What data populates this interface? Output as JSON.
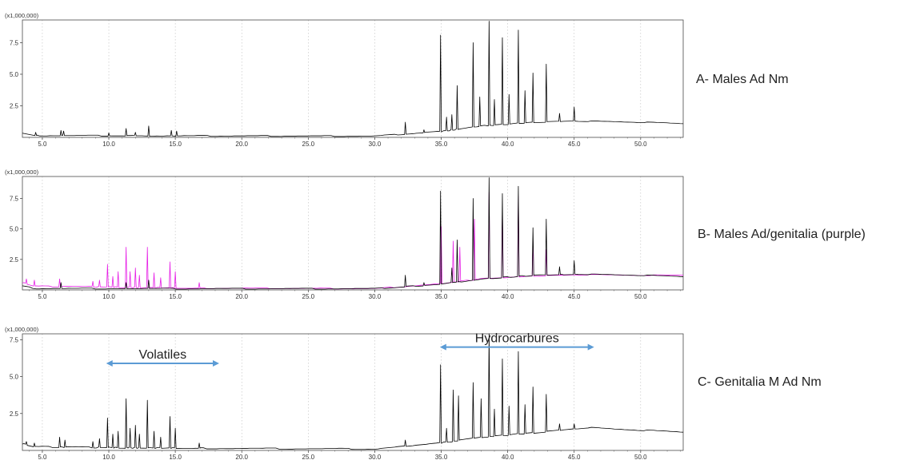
{
  "chart_data": [
    {
      "type": "line",
      "scale_label": "(x1,000,000)",
      "sample_label": "A- Males Ad Nm",
      "xlim": [
        3.5,
        53.2
      ],
      "ylim": [
        0,
        9.3
      ],
      "xticks": [
        5.0,
        10.0,
        15.0,
        20.0,
        25.0,
        30.0,
        35.0,
        40.0,
        45.0,
        50.0
      ],
      "xtick_labels": [
        "5.0",
        "10.0",
        "15.0",
        "20.0",
        "25.0",
        "30.0",
        "35.0",
        "40.0",
        "45.0",
        "50.0"
      ],
      "yticks": [
        2.5,
        5.0,
        7.5
      ],
      "ytick_labels": [
        "2.5",
        "5.0",
        "7.5"
      ],
      "grid": true,
      "series": [
        {
          "color": "#000000",
          "baseline": [
            [
              3.5,
              0.35
            ],
            [
              4.5,
              0.15
            ],
            [
              15.0,
              0.12
            ],
            [
              30.0,
              0.1
            ],
            [
              34.9,
              0.45
            ],
            [
              38.0,
              0.9
            ],
            [
              42.0,
              1.2
            ],
            [
              45.0,
              1.3
            ],
            [
              50.0,
              1.2
            ],
            [
              53.2,
              1.1
            ]
          ],
          "peaks": [
            [
              4.5,
              0.4
            ],
            [
              6.4,
              0.55
            ],
            [
              6.6,
              0.5
            ],
            [
              10.0,
              0.35
            ],
            [
              11.3,
              0.7
            ],
            [
              12.0,
              0.4
            ],
            [
              13.0,
              0.9
            ],
            [
              14.7,
              0.55
            ],
            [
              15.1,
              0.5
            ],
            [
              32.3,
              1.2
            ],
            [
              33.7,
              0.6
            ],
            [
              34.95,
              8.1
            ],
            [
              35.4,
              1.6
            ],
            [
              35.8,
              1.8
            ],
            [
              36.2,
              4.1
            ],
            [
              37.4,
              7.5
            ],
            [
              37.9,
              3.2
            ],
            [
              38.6,
              9.2
            ],
            [
              39.0,
              3.0
            ],
            [
              39.6,
              7.9
            ],
            [
              40.1,
              3.4
            ],
            [
              40.8,
              8.5
            ],
            [
              41.3,
              3.7
            ],
            [
              41.9,
              5.1
            ],
            [
              42.9,
              5.8
            ],
            [
              43.9,
              1.9
            ],
            [
              45.0,
              2.4
            ]
          ]
        }
      ]
    },
    {
      "type": "line",
      "scale_label": "(x1,000,000)",
      "sample_label": "B- Males Ad/genitalia (purple)",
      "xlim": [
        3.5,
        53.2
      ],
      "ylim": [
        0,
        9.3
      ],
      "xticks": [
        5.0,
        10.0,
        15.0,
        20.0,
        25.0,
        30.0,
        35.0,
        40.0,
        45.0,
        50.0
      ],
      "xtick_labels": [
        "5.0",
        "10.0",
        "15.0",
        "20.0",
        "25.0",
        "30.0",
        "35.0",
        "40.0",
        "45.0",
        "50.0"
      ],
      "yticks": [
        2.5,
        5.0,
        7.5
      ],
      "ytick_labels": [
        "2.5",
        "5.0",
        "7.5"
      ],
      "grid": true,
      "series": [
        {
          "color": "#e61ee6",
          "baseline": [
            [
              3.5,
              0.6
            ],
            [
              4.5,
              0.3
            ],
            [
              9.0,
              0.25
            ],
            [
              15.0,
              0.15
            ],
            [
              30.0,
              0.1
            ],
            [
              34.9,
              0.5
            ],
            [
              38.0,
              0.9
            ],
            [
              42.0,
              1.15
            ],
            [
              45.0,
              1.25
            ],
            [
              50.0,
              1.2
            ],
            [
              53.2,
              1.2
            ]
          ],
          "peaks": [
            [
              3.8,
              0.9
            ],
            [
              4.4,
              0.8
            ],
            [
              6.3,
              0.9
            ],
            [
              8.8,
              0.7
            ],
            [
              9.3,
              0.8
            ],
            [
              9.9,
              2.1
            ],
            [
              10.3,
              1.1
            ],
            [
              10.7,
              1.5
            ],
            [
              11.3,
              3.5
            ],
            [
              11.6,
              1.5
            ],
            [
              12.0,
              1.8
            ],
            [
              12.3,
              1.2
            ],
            [
              12.9,
              3.5
            ],
            [
              13.4,
              1.4
            ],
            [
              13.9,
              1.0
            ],
            [
              14.6,
              2.3
            ],
            [
              15.0,
              1.5
            ],
            [
              16.8,
              0.6
            ],
            [
              35.0,
              5.2
            ],
            [
              35.9,
              4.0
            ],
            [
              36.4,
              3.5
            ],
            [
              37.5,
              5.8
            ],
            [
              38.6,
              8.0
            ],
            [
              39.6,
              6.6
            ],
            [
              40.8,
              7.7
            ],
            [
              41.9,
              4.0
            ],
            [
              42.9,
              3.3
            ]
          ]
        },
        {
          "color": "#000000",
          "baseline": [
            [
              3.5,
              0.3
            ],
            [
              4.5,
              0.12
            ],
            [
              15.0,
              0.1
            ],
            [
              30.0,
              0.1
            ],
            [
              34.9,
              0.45
            ],
            [
              38.0,
              0.9
            ],
            [
              42.0,
              1.2
            ],
            [
              45.0,
              1.3
            ],
            [
              50.0,
              1.2
            ],
            [
              53.2,
              1.1
            ]
          ],
          "peaks": [
            [
              6.4,
              0.6
            ],
            [
              11.3,
              0.6
            ],
            [
              13.0,
              0.8
            ],
            [
              32.3,
              1.2
            ],
            [
              33.7,
              0.6
            ],
            [
              34.95,
              8.1
            ],
            [
              35.8,
              1.8
            ],
            [
              36.2,
              4.1
            ],
            [
              37.4,
              7.5
            ],
            [
              38.6,
              9.2
            ],
            [
              39.6,
              7.9
            ],
            [
              40.8,
              8.5
            ],
            [
              41.9,
              5.1
            ],
            [
              42.9,
              5.8
            ],
            [
              43.9,
              1.9
            ],
            [
              45.0,
              2.4
            ]
          ]
        }
      ]
    },
    {
      "type": "line",
      "scale_label": "(x1,000,000)",
      "sample_label": "C- Genitalia M Ad Nm",
      "xlim": [
        3.5,
        53.2
      ],
      "ylim": [
        0,
        7.9
      ],
      "xticks": [
        5.0,
        10.0,
        15.0,
        20.0,
        25.0,
        30.0,
        35.0,
        40.0,
        45.0,
        50.0
      ],
      "xtick_labels": [
        "5.0",
        "10.0",
        "15.0",
        "20.0",
        "25.0",
        "30.0",
        "35.0",
        "40.0",
        "45.0",
        "50.0"
      ],
      "yticks": [
        2.5,
        5.0,
        7.5
      ],
      "ytick_labels": [
        "2.5",
        "5.0",
        "7.5"
      ],
      "grid": true,
      "annotations": [
        {
          "text": "Volatiles",
          "x_start": 9.8,
          "x_end": 18.3,
          "y": 5.9
        },
        {
          "text": "Hydrocarbures",
          "x_start": 34.9,
          "x_end": 46.5,
          "y": 7.0
        }
      ],
      "series": [
        {
          "color": "#000000",
          "baseline": [
            [
              3.5,
              0.45
            ],
            [
              4.5,
              0.25
            ],
            [
              9.0,
              0.2
            ],
            [
              15.0,
              0.15
            ],
            [
              30.0,
              0.1
            ],
            [
              34.9,
              0.5
            ],
            [
              38.0,
              0.9
            ],
            [
              42.0,
              1.2
            ],
            [
              46.0,
              1.55
            ],
            [
              48.0,
              1.45
            ],
            [
              53.2,
              1.25
            ]
          ],
          "peaks": [
            [
              3.8,
              0.6
            ],
            [
              4.4,
              0.5
            ],
            [
              6.3,
              0.9
            ],
            [
              6.7,
              0.7
            ],
            [
              8.8,
              0.6
            ],
            [
              9.3,
              0.8
            ],
            [
              9.9,
              2.2
            ],
            [
              10.3,
              1.1
            ],
            [
              10.7,
              1.3
            ],
            [
              11.3,
              3.5
            ],
            [
              11.6,
              1.5
            ],
            [
              12.0,
              1.7
            ],
            [
              12.3,
              1.1
            ],
            [
              12.9,
              3.4
            ],
            [
              13.4,
              1.3
            ],
            [
              13.9,
              0.9
            ],
            [
              14.6,
              2.3
            ],
            [
              15.0,
              1.5
            ],
            [
              16.8,
              0.5
            ],
            [
              32.3,
              0.7
            ],
            [
              34.95,
              5.8
            ],
            [
              35.4,
              1.5
            ],
            [
              35.9,
              4.1
            ],
            [
              36.3,
              3.7
            ],
            [
              37.4,
              4.6
            ],
            [
              38.0,
              3.5
            ],
            [
              38.6,
              7.9
            ],
            [
              39.0,
              2.8
            ],
            [
              39.6,
              6.2
            ],
            [
              40.1,
              3.0
            ],
            [
              40.8,
              6.7
            ],
            [
              41.3,
              3.1
            ],
            [
              41.9,
              4.3
            ],
            [
              42.9,
              3.8
            ],
            [
              43.9,
              1.8
            ],
            [
              45.0,
              1.8
            ]
          ]
        }
      ]
    }
  ]
}
